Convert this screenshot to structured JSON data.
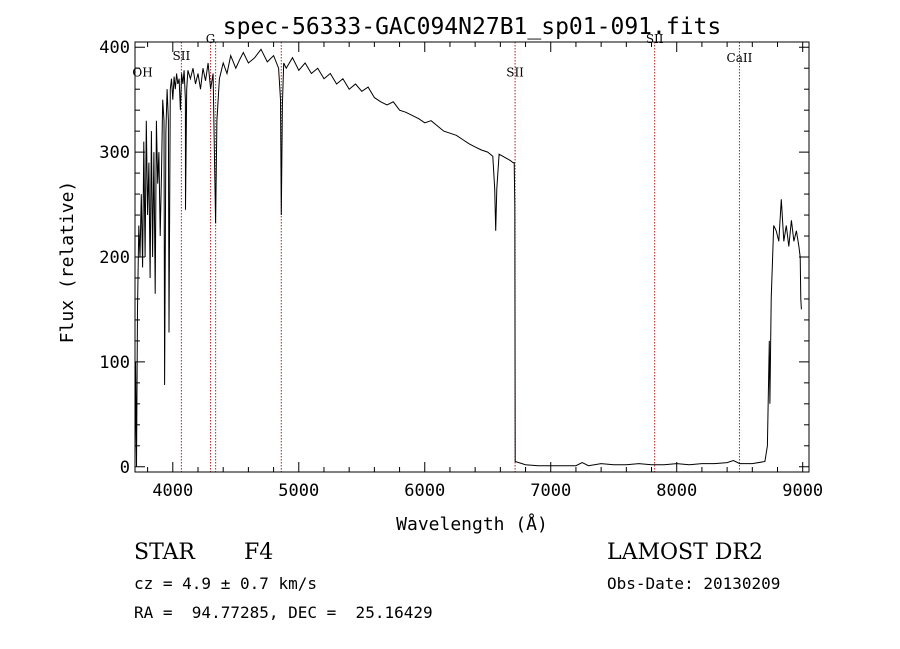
{
  "chart_data": {
    "type": "line",
    "title": "spec-56333-GAC094N27B1_sp01-091.fits",
    "xlabel": "Wavelength (Å)",
    "ylabel": "Flux (relative)",
    "xlim": [
      3700,
      9050
    ],
    "ylim": [
      -5,
      405
    ],
    "x_ticks": [
      4000,
      5000,
      6000,
      7000,
      8000,
      9000
    ],
    "y_ticks": [
      0,
      100,
      200,
      300,
      400
    ],
    "grid": false,
    "series": [
      {
        "color": "#000000",
        "points": [
          [
            3700,
            10
          ],
          [
            3705,
            100
          ],
          [
            3712,
            0
          ],
          [
            3720,
            150
          ],
          [
            3730,
            230
          ],
          [
            3740,
            200
          ],
          [
            3750,
            260
          ],
          [
            3760,
            190
          ],
          [
            3770,
            310
          ],
          [
            3780,
            200
          ],
          [
            3790,
            330
          ],
          [
            3800,
            240
          ],
          [
            3810,
            290
          ],
          [
            3820,
            180
          ],
          [
            3830,
            320
          ],
          [
            3840,
            200
          ],
          [
            3850,
            300
          ],
          [
            3860,
            165
          ],
          [
            3870,
            330
          ],
          [
            3880,
            270
          ],
          [
            3890,
            300
          ],
          [
            3900,
            220
          ],
          [
            3910,
            280
          ],
          [
            3920,
            350
          ],
          [
            3930,
            330
          ],
          [
            3935,
            78
          ],
          [
            3945,
            320
          ],
          [
            3955,
            360
          ],
          [
            3965,
            330
          ],
          [
            3970,
            128
          ],
          [
            3980,
            360
          ],
          [
            3990,
            370
          ],
          [
            4000,
            350
          ],
          [
            4010,
            372
          ],
          [
            4020,
            360
          ],
          [
            4030,
            375
          ],
          [
            4040,
            365
          ],
          [
            4050,
            370
          ],
          [
            4060,
            340
          ],
          [
            4070,
            375
          ],
          [
            4080,
            365
          ],
          [
            4090,
            378
          ],
          [
            4100,
            350
          ],
          [
            4101,
            245
          ],
          [
            4110,
            360
          ],
          [
            4120,
            378
          ],
          [
            4140,
            370
          ],
          [
            4160,
            380
          ],
          [
            4180,
            365
          ],
          [
            4200,
            375
          ],
          [
            4220,
            360
          ],
          [
            4240,
            380
          ],
          [
            4260,
            368
          ],
          [
            4280,
            385
          ],
          [
            4300,
            360
          ],
          [
            4320,
            375
          ],
          [
            4330,
            300
          ],
          [
            4340,
            232
          ],
          [
            4350,
            330
          ],
          [
            4370,
            370
          ],
          [
            4400,
            385
          ],
          [
            4430,
            375
          ],
          [
            4460,
            392
          ],
          [
            4500,
            380
          ],
          [
            4530,
            388
          ],
          [
            4560,
            395
          ],
          [
            4600,
            385
          ],
          [
            4650,
            390
          ],
          [
            4700,
            398
          ],
          [
            4750,
            386
          ],
          [
            4800,
            392
          ],
          [
            4840,
            380
          ],
          [
            4855,
            350
          ],
          [
            4861,
            240
          ],
          [
            4870,
            345
          ],
          [
            4880,
            385
          ],
          [
            4900,
            380
          ],
          [
            4950,
            390
          ],
          [
            5000,
            378
          ],
          [
            5050,
            385
          ],
          [
            5100,
            375
          ],
          [
            5150,
            380
          ],
          [
            5200,
            370
          ],
          [
            5250,
            375
          ],
          [
            5300,
            365
          ],
          [
            5350,
            370
          ],
          [
            5400,
            360
          ],
          [
            5450,
            365
          ],
          [
            5500,
            358
          ],
          [
            5550,
            362
          ],
          [
            5600,
            352
          ],
          [
            5650,
            348
          ],
          [
            5700,
            345
          ],
          [
            5750,
            348
          ],
          [
            5800,
            340
          ],
          [
            5850,
            338
          ],
          [
            5900,
            335
          ],
          [
            5950,
            332
          ],
          [
            6000,
            328
          ],
          [
            6050,
            330
          ],
          [
            6100,
            325
          ],
          [
            6150,
            320
          ],
          [
            6200,
            318
          ],
          [
            6250,
            316
          ],
          [
            6300,
            312
          ],
          [
            6350,
            308
          ],
          [
            6400,
            305
          ],
          [
            6450,
            302
          ],
          [
            6500,
            300
          ],
          [
            6540,
            296
          ],
          [
            6555,
            265
          ],
          [
            6563,
            225
          ],
          [
            6572,
            265
          ],
          [
            6590,
            298
          ],
          [
            6620,
            296
          ],
          [
            6650,
            294
          ],
          [
            6680,
            292
          ],
          [
            6700,
            290
          ],
          [
            6710,
            290
          ],
          [
            6715,
            250
          ],
          [
            6718,
            5
          ],
          [
            6800,
            2
          ],
          [
            6900,
            1
          ],
          [
            7000,
            1
          ],
          [
            7100,
            1
          ],
          [
            7200,
            1
          ],
          [
            7250,
            4
          ],
          [
            7300,
            1
          ],
          [
            7400,
            3
          ],
          [
            7500,
            2
          ],
          [
            7600,
            2
          ],
          [
            7700,
            3
          ],
          [
            7800,
            2
          ],
          [
            7900,
            2
          ],
          [
            8000,
            3
          ],
          [
            8100,
            2
          ],
          [
            8200,
            3
          ],
          [
            8300,
            3
          ],
          [
            8400,
            4
          ],
          [
            8450,
            6
          ],
          [
            8500,
            3
          ],
          [
            8600,
            3
          ],
          [
            8700,
            5
          ],
          [
            8720,
            20
          ],
          [
            8735,
            120
          ],
          [
            8740,
            60
          ],
          [
            8750,
            160
          ],
          [
            8770,
            230
          ],
          [
            8790,
            225
          ],
          [
            8810,
            215
          ],
          [
            8830,
            255
          ],
          [
            8850,
            215
          ],
          [
            8870,
            230
          ],
          [
            8890,
            210
          ],
          [
            8910,
            235
          ],
          [
            8930,
            215
          ],
          [
            8950,
            225
          ],
          [
            8970,
            210
          ],
          [
            8980,
            200
          ],
          [
            8985,
            160
          ],
          [
            8990,
            150
          ]
        ]
      }
    ],
    "annotations": [
      {
        "label": "OH",
        "x": 3760,
        "y": 372,
        "line": false
      },
      {
        "label": "SII",
        "x": 4068,
        "y": 388,
        "line": true
      },
      {
        "label": "G",
        "x": 4300,
        "y": 404,
        "line": true
      },
      {
        "label": "",
        "x": 4340,
        "line": true
      },
      {
        "label": "",
        "x": 4861,
        "line": true
      },
      {
        "label": "SII",
        "x": 6717,
        "y": 372,
        "line": true
      },
      {
        "label": "SII",
        "x": 7825,
        "y": 404,
        "line": true
      },
      {
        "label": "CaII",
        "x": 8498,
        "y": 386,
        "line": true
      }
    ],
    "annotation_color": "#b22222"
  },
  "info": {
    "object_class": "STAR",
    "subclass": "F4",
    "survey": "LAMOST DR2",
    "cz": "cz = 4.9 ± 0.7 km/s",
    "obs_date": "Obs-Date: 20130209",
    "coords": "RA =  94.77285, DEC =  25.16429"
  }
}
